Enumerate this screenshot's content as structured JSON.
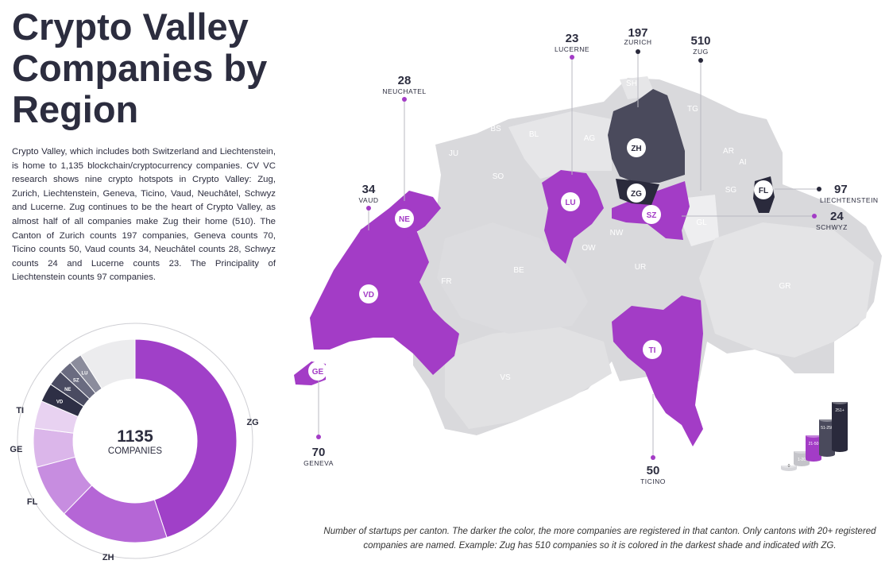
{
  "title_lines": [
    "Crypto Valley",
    "Companies by",
    "Region"
  ],
  "description": "Crypto Valley, which includes both Switzerland and Liechtenstein, is home to 1,135 blockchain/cryptocurrency companies. CV VC research shows nine crypto hotspots in Crypto Valley: Zug, Zurich, Liechtenstein, Geneva, Ticino, Vaud, Neuchâtel, Schwyz and Lucerne. Zug continues to be the heart of Crypto Valley, as almost half of all companies make Zug their home (510). The Canton of Zurich counts 197 companies, Geneva counts 70, Ticino counts 50, Vaud counts 34, Neuchâtel counts 28, Schwyz counts 24 and Lucerne counts 23. The Principality of Liechtenstein counts 97 companies.",
  "caption": "Number of startups per canton. The darker the color, the more companies are registered in that canton. Only cantons with 20+ registered companies are named. Example: Zug has 510 companies so it is colored in the darkest shade and indicated with ZG.",
  "donut": {
    "total": "1135",
    "total_label": "COMPANIES",
    "segments": [
      {
        "code": "ZG",
        "value": 510,
        "color": "#a040c8"
      },
      {
        "code": "ZH",
        "value": 197,
        "color": "#b566d6"
      },
      {
        "code": "FL",
        "value": 97,
        "color": "#c78de0"
      },
      {
        "code": "GE",
        "value": 70,
        "color": "#dbb6ea"
      },
      {
        "code": "TI",
        "value": 50,
        "color": "#e8d2f1"
      },
      {
        "code": "VD",
        "value": 34,
        "color": "#2e2f45"
      },
      {
        "code": "NE",
        "value": 28,
        "color": "#4a4b61"
      },
      {
        "code": "SZ",
        "value": 24,
        "color": "#6a6b80"
      },
      {
        "code": "LU",
        "value": 23,
        "color": "#8b8c9c"
      },
      {
        "code": "",
        "value": 102,
        "color": "#ececee"
      }
    ]
  },
  "map": {
    "colors": {
      "purple": "#a33cc6",
      "dark": "#4a4a5c",
      "darkest": "#2a2a3c",
      "grey": "#d9d9dc",
      "grey_light": "#e6e6e8",
      "label_grey": "#ffffff"
    },
    "hotspots": [
      {
        "code": "ZG",
        "count": "510",
        "name": "ZUG"
      },
      {
        "code": "ZH",
        "count": "197",
        "name": "ZURICH"
      },
      {
        "code": "FL",
        "count": "97",
        "name": "LIECHTENSTEIN"
      },
      {
        "code": "GE",
        "count": "70",
        "name": "GENEVA"
      },
      {
        "code": "TI",
        "count": "50",
        "name": "TICINO"
      },
      {
        "code": "VD",
        "count": "34",
        "name": "VAUD"
      },
      {
        "code": "NE",
        "count": "28",
        "name": "NEUCHATEL"
      },
      {
        "code": "SZ",
        "count": "24",
        "name": "SCHWYZ"
      },
      {
        "code": "LU",
        "count": "23",
        "name": "LUCERNE"
      }
    ],
    "other_cantons": [
      "SH",
      "TG",
      "BS",
      "BL",
      "AG",
      "JU",
      "SO",
      "AR",
      "AI",
      "SG",
      "GL",
      "NW",
      "OW",
      "UR",
      "BE",
      "FR",
      "GR",
      "VS"
    ]
  },
  "legend_tiers": [
    "0",
    "1-20",
    "21-50",
    "51-250",
    "251+"
  ]
}
